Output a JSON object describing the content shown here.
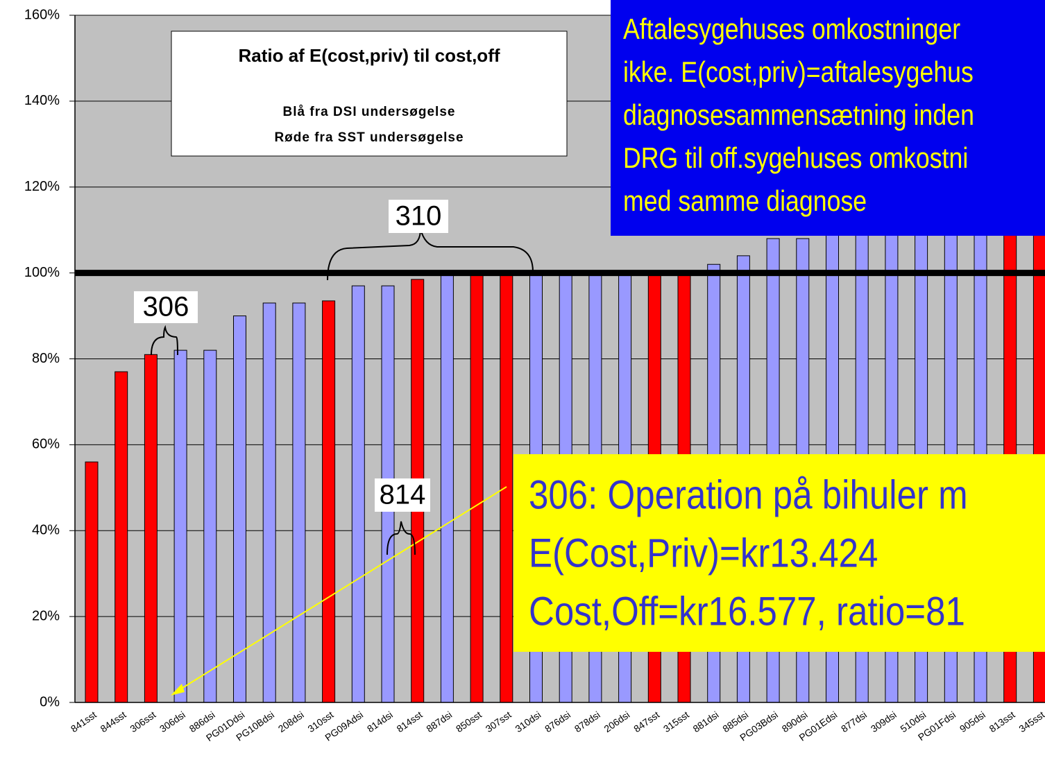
{
  "chart_data": {
    "type": "bar",
    "categories": [
      "841sst",
      "844sst",
      "306sst",
      "306dsi",
      "886dsi",
      "PG01Ddsi",
      "PG10Bdsi",
      "208dsi",
      "310sst",
      "PG09Adsi",
      "814dsi",
      "814sst",
      "887dsi",
      "850sst",
      "307sst",
      "310dsi",
      "876dsi",
      "878dsi",
      "206dsi",
      "847sst",
      "315sst",
      "881dsi",
      "885dsi",
      "PG03Bdsi",
      "890dsi",
      "PG01Edsi",
      "877dsi",
      "309dsi",
      "510dsi",
      "PG01Fdsi",
      "905dsi",
      "813sst",
      "345sst"
    ],
    "values": [
      56,
      77,
      81,
      82,
      82,
      90,
      93,
      93,
      93.5,
      97,
      97,
      98.5,
      100,
      100,
      100,
      100,
      100,
      100,
      100,
      100,
      100,
      102,
      104,
      108,
      108,
      110,
      112,
      114,
      115,
      118,
      120,
      125,
      130
    ],
    "colors": [
      "#ff0000",
      "#ff0000",
      "#ff0000",
      "#9999ff",
      "#9999ff",
      "#9999ff",
      "#9999ff",
      "#9999ff",
      "#ff0000",
      "#9999ff",
      "#9999ff",
      "#ff0000",
      "#9999ff",
      "#ff0000",
      "#ff0000",
      "#9999ff",
      "#9999ff",
      "#9999ff",
      "#9999ff",
      "#ff0000",
      "#ff0000",
      "#9999ff",
      "#9999ff",
      "#9999ff",
      "#9999ff",
      "#9999ff",
      "#9999ff",
      "#9999ff",
      "#9999ff",
      "#9999ff",
      "#9999ff",
      "#ff0000",
      "#ff0000"
    ],
    "ylim": [
      0,
      160
    ],
    "yticks": [
      {
        "value": 0,
        "label": "0%"
      },
      {
        "value": 20,
        "label": "20%"
      },
      {
        "value": 40,
        "label": "40%"
      },
      {
        "value": 60,
        "label": "60%"
      },
      {
        "value": 80,
        "label": "80%"
      },
      {
        "value": 100,
        "label": "100%"
      },
      {
        "value": 120,
        "label": "120%"
      },
      {
        "value": 140,
        "label": "140%"
      },
      {
        "value": 160,
        "label": "160%"
      }
    ],
    "grid": true,
    "reference_line": 100,
    "legend_title": "Ratio af E(cost,priv) til cost,off",
    "legend_lines": [
      "Blå fra DSI undersøgelse",
      "Røde fra SST undersøgelse"
    ],
    "note_lines": [
      "Aftalesygehuses omkostninger",
      "ikke. E(cost,priv)=aftalesygehus",
      "diagnosesammensætning inden",
      "DRG til off.sygehuses omkostni",
      "med samme diagnose"
    ],
    "example_lines": [
      "306: Operation på bihuler m",
      "E(Cost,Priv)=kr13.424",
      "Cost,Off=kr16.577, ratio=81"
    ],
    "labels": [
      "306",
      "310",
      "814"
    ]
  }
}
